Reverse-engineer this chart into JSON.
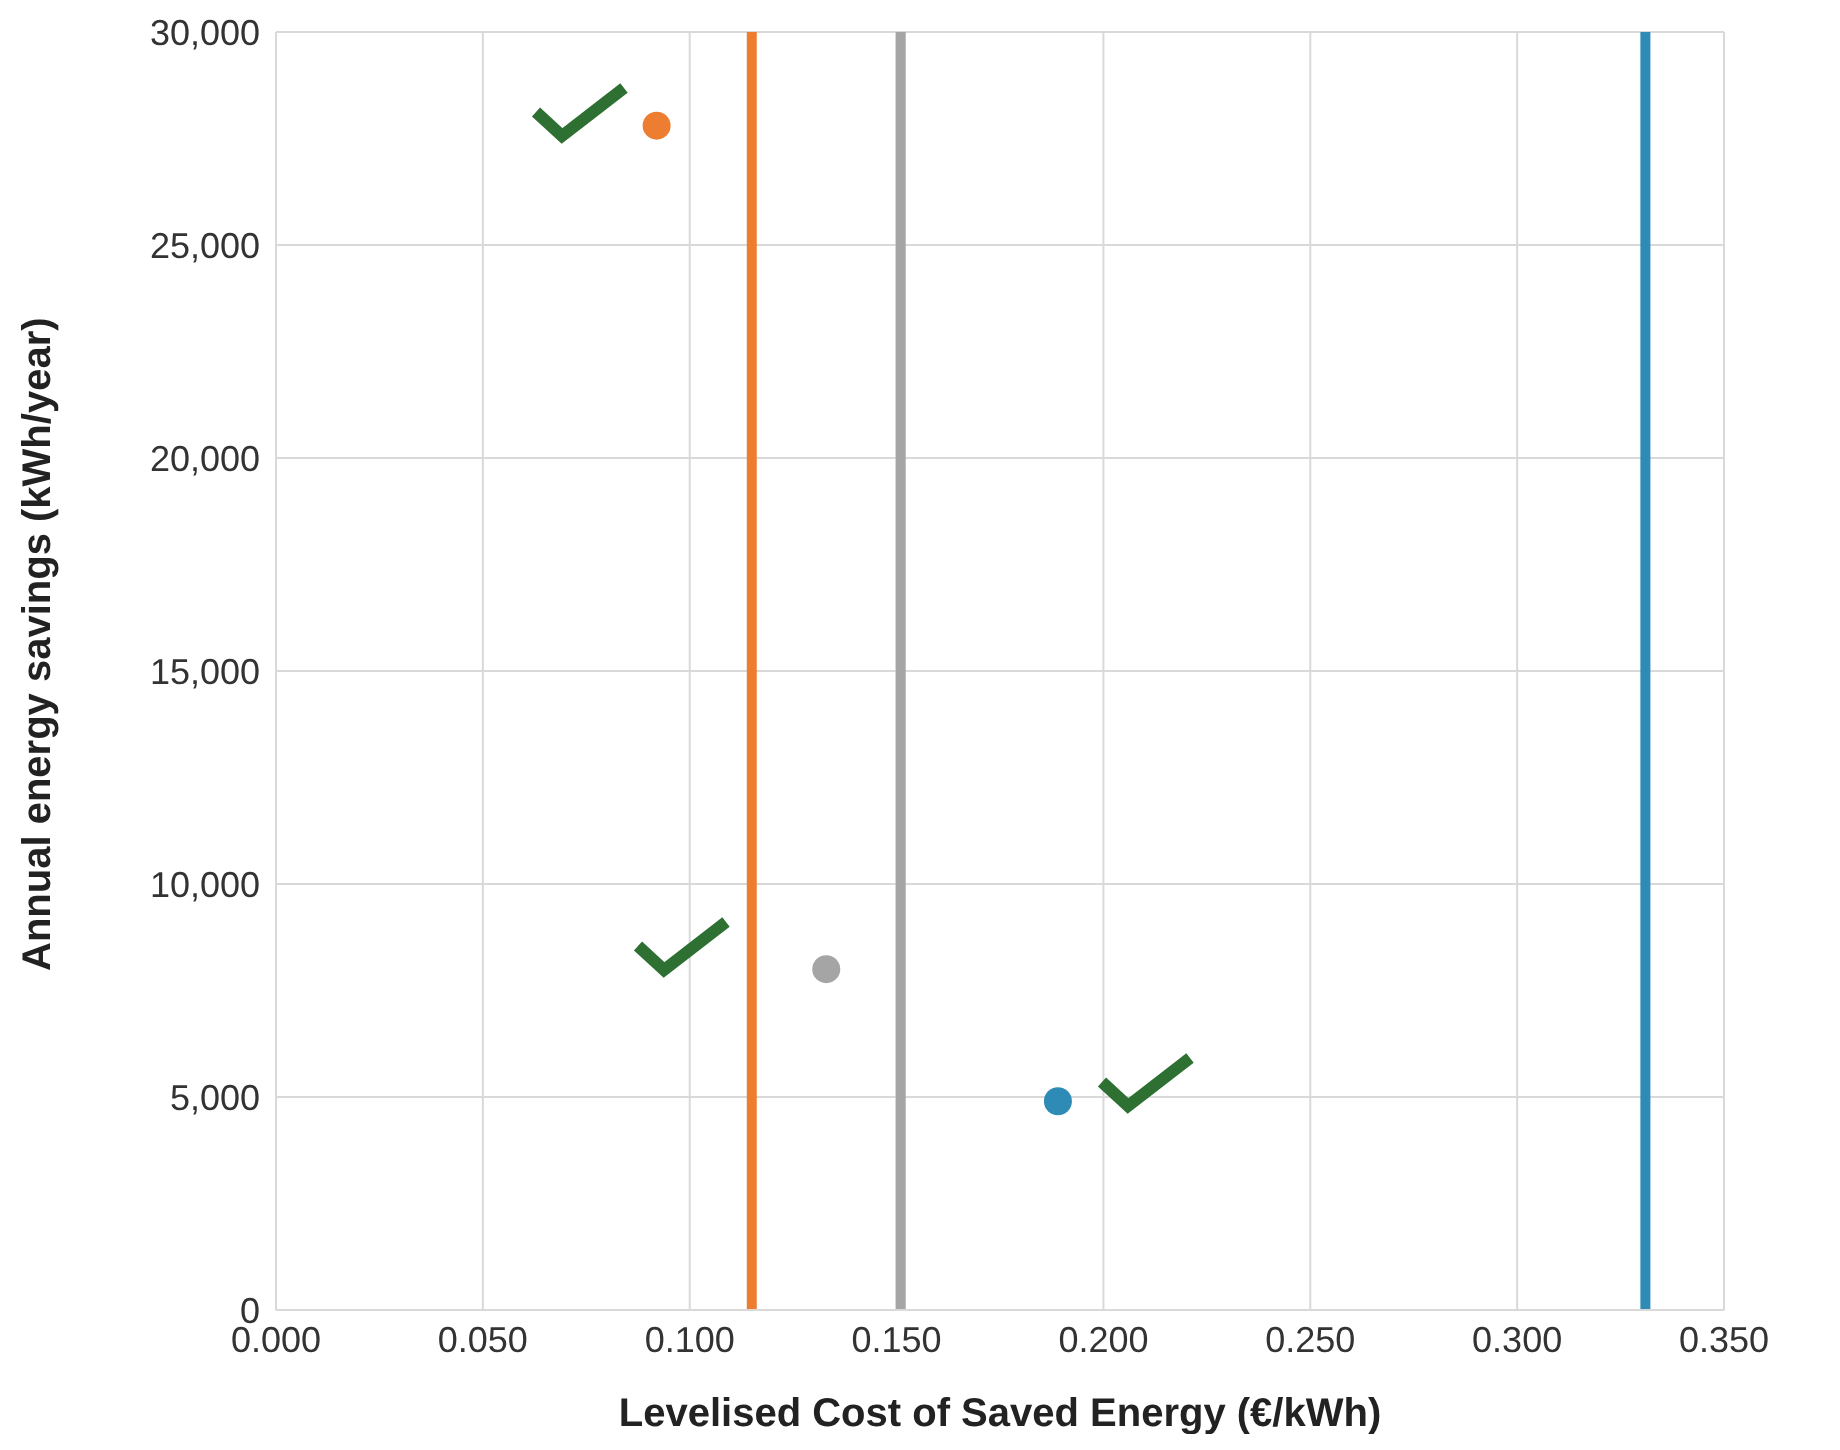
{
  "chart_data": {
    "type": "scatter",
    "xlabel": "Levelised Cost of Saved Energy (€/kWh)",
    "ylabel": "Annual energy savings (kWh/year)",
    "series": [
      {
        "color": "#ed7d31",
        "x": [
          0.092
        ],
        "values": [
          27800
        ]
      },
      {
        "color": "#a5a5a5",
        "x": [
          0.133
        ],
        "values": [
          8000
        ]
      },
      {
        "color": "#2e8bb5",
        "x": [
          0.189
        ],
        "values": [
          4900
        ]
      }
    ],
    "ref_lines": [
      {
        "axis": "x",
        "value": 0.115,
        "color": "#ed7d31"
      },
      {
        "axis": "x",
        "value": 0.151,
        "color": "#a5a5a5"
      },
      {
        "axis": "x",
        "value": 0.331,
        "color": "#2e8bb5"
      }
    ],
    "xlim": [
      0,
      0.35
    ],
    "xticks": [
      {
        "value": 0,
        "label": "0.000"
      },
      {
        "value": 0.05,
        "label": "0.050"
      },
      {
        "value": 0.1,
        "label": "0.100"
      },
      {
        "value": 0.15,
        "label": "0.150"
      },
      {
        "value": 0.2,
        "label": "0.200"
      },
      {
        "value": 0.25,
        "label": "0.250"
      },
      {
        "value": 0.3,
        "label": "0.300"
      },
      {
        "value": 0.35,
        "label": "0.350"
      }
    ],
    "ylim": [
      0,
      30000
    ],
    "yticks": [
      0,
      {
        "value": 5000,
        "label": "5,000"
      },
      {
        "value": 10000,
        "label": "10,000"
      },
      {
        "value": 15000,
        "label": "15,000"
      },
      {
        "value": 20000,
        "label": "20,000"
      },
      {
        "value": 25000,
        "label": "25,000"
      },
      {
        "value": 30000,
        "label": "30,000"
      }
    ],
    "grid": true,
    "marker": "circle"
  }
}
